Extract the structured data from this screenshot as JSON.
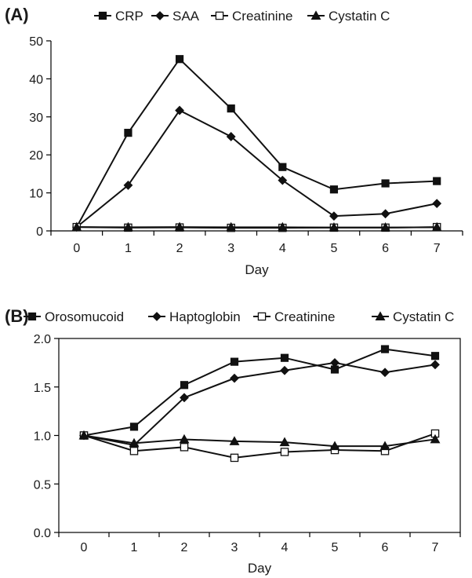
{
  "chart_data": [
    {
      "type": "line",
      "panel_label": "(A)",
      "xlabel": "Day",
      "ylabel": "",
      "x": [
        0,
        1,
        2,
        3,
        4,
        5,
        6,
        7
      ],
      "x_tick_labels": [
        "0",
        "1",
        "2",
        "3",
        "4",
        "5",
        "6",
        "7"
      ],
      "ylim": [
        0,
        50
      ],
      "y_ticks": [
        0,
        10,
        20,
        30,
        40,
        50
      ],
      "y_tick_labels": [
        "0",
        "10",
        "20",
        "30",
        "40",
        "50"
      ],
      "grid": false,
      "legend_position": "top",
      "series": [
        {
          "name": "CRP",
          "marker": "filled-square",
          "values": [
            1,
            25.8,
            45.2,
            32.2,
            16.8,
            10.9,
            12.5,
            13.1
          ]
        },
        {
          "name": "SAA",
          "marker": "filled-diamond",
          "values": [
            1,
            12.0,
            31.7,
            24.8,
            13.3,
            3.9,
            4.5,
            7.2
          ]
        },
        {
          "name": "Creatinine",
          "marker": "open-square",
          "values": [
            1,
            0.85,
            0.9,
            0.8,
            0.8,
            0.85,
            0.85,
            1.0
          ]
        },
        {
          "name": "Cystatin C",
          "marker": "filled-triangle",
          "values": [
            1,
            0.95,
            1.0,
            0.95,
            0.95,
            0.9,
            0.9,
            0.95
          ]
        }
      ]
    },
    {
      "type": "line",
      "panel_label": "(B)",
      "xlabel": "Day",
      "ylabel": "",
      "x": [
        0,
        1,
        2,
        3,
        4,
        5,
        6,
        7
      ],
      "x_tick_labels": [
        "0",
        "1",
        "2",
        "3",
        "4",
        "5",
        "6",
        "7"
      ],
      "ylim": [
        0,
        2
      ],
      "y_ticks": [
        0,
        0.5,
        1,
        1.5,
        2
      ],
      "y_tick_labels": [
        "0.0",
        "0.5",
        "1.0",
        "1.5",
        "2.0"
      ],
      "grid": false,
      "legend_position": "top",
      "series": [
        {
          "name": "Orosomucoid",
          "marker": "filled-square",
          "values": [
            1.0,
            1.09,
            1.52,
            1.76,
            1.8,
            1.68,
            1.89,
            1.82
          ]
        },
        {
          "name": "Haptoglobin",
          "marker": "filled-diamond",
          "values": [
            1.0,
            0.9,
            1.39,
            1.59,
            1.67,
            1.75,
            1.65,
            1.73
          ]
        },
        {
          "name": "Creatinine",
          "marker": "open-square",
          "values": [
            1.0,
            0.84,
            0.88,
            0.77,
            0.83,
            0.85,
            0.84,
            1.02
          ]
        },
        {
          "name": "Cystatin C",
          "marker": "filled-triangle",
          "values": [
            1.0,
            0.92,
            0.96,
            0.94,
            0.93,
            0.89,
            0.89,
            0.96
          ]
        }
      ]
    }
  ]
}
